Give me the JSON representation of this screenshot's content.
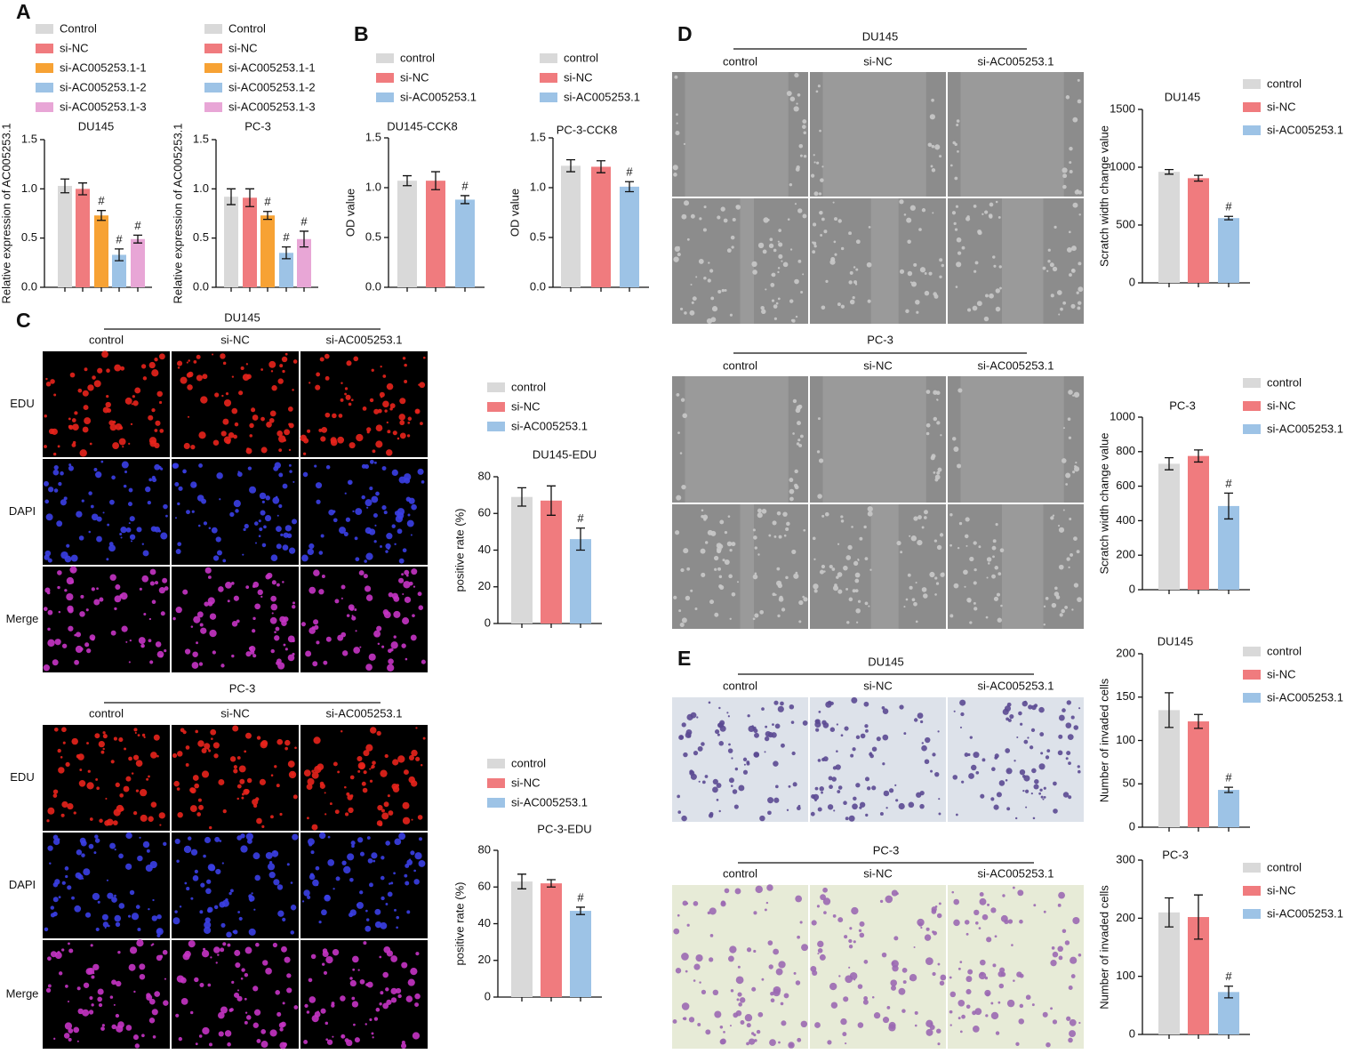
{
  "panel_labels": [
    "A",
    "B",
    "C",
    "D",
    "E"
  ],
  "image_panels": [
    {
      "group": "DU145",
      "columns": [
        "control",
        "si-NC",
        "si-AC005253.1"
      ],
      "rows": [
        "EDU",
        "DAPI",
        "Merge"
      ]
    },
    {
      "group": "PC-3",
      "columns": [
        "control",
        "si-NC",
        "si-AC005253.1"
      ],
      "rows": [
        "EDU",
        "DAPI",
        "Merge"
      ]
    },
    {
      "group": "DU145",
      "columns": [
        "control",
        "si-NC",
        "si-AC005253.1"
      ]
    },
    {
      "group": "PC-3",
      "columns": [
        "control",
        "si-NC",
        "si-AC005253.1"
      ]
    },
    {
      "group": "DU145",
      "columns": [
        "control",
        "si-NC",
        "si-AC005253.1"
      ]
    },
    {
      "group": "PC-3",
      "columns": [
        "control",
        "si-NC",
        "si-AC005253.1"
      ]
    }
  ],
  "chart_data": [
    {
      "type": "bar",
      "title": "DU145",
      "ylabel": "Relative expression of AC005253.1",
      "ylim": [
        0,
        1.5
      ],
      "yticks": [
        {
          "value": 0,
          "label": "0.0"
        },
        {
          "value": 0.5,
          "label": "0.5"
        },
        {
          "value": 1,
          "label": "1.0"
        },
        {
          "value": 1.5,
          "label": "1.5"
        }
      ],
      "series": [
        {
          "name": "Control",
          "color": "#d9d9d9",
          "values": [
            1.03
          ],
          "errors": [
            0.07
          ]
        },
        {
          "name": "si-NC",
          "color": "#f07b7e",
          "values": [
            1.0
          ],
          "errors": [
            0.06
          ]
        },
        {
          "name": "si-AC005253.1-1",
          "color": "#f7a234",
          "values": [
            0.73
          ],
          "errors": [
            0.05
          ],
          "annotation": "#"
        },
        {
          "name": "si-AC005253.1-2",
          "color": "#9dc3e6",
          "values": [
            0.33
          ],
          "errors": [
            0.06
          ],
          "annotation": "#"
        },
        {
          "name": "si-AC005253.1-3",
          "color": "#e8a6d6",
          "values": [
            0.49
          ],
          "errors": [
            0.04
          ],
          "annotation": "#"
        }
      ]
    },
    {
      "type": "bar",
      "title": "PC-3",
      "ylabel": "Relative expression of AC005253.1",
      "ylim": [
        0,
        1.5
      ],
      "yticks": [
        {
          "value": 0,
          "label": "0.0"
        },
        {
          "value": 0.5,
          "label": "0.5"
        },
        {
          "value": 1,
          "label": "1.0"
        },
        {
          "value": 1.5,
          "label": "1.5"
        }
      ],
      "series": [
        {
          "name": "Control",
          "color": "#d9d9d9",
          "values": [
            0.92
          ],
          "errors": [
            0.08
          ]
        },
        {
          "name": "si-NC",
          "color": "#f07b7e",
          "values": [
            0.91
          ],
          "errors": [
            0.09
          ]
        },
        {
          "name": "si-AC005253.1-1",
          "color": "#f7a234",
          "values": [
            0.73
          ],
          "errors": [
            0.04
          ],
          "annotation": "#"
        },
        {
          "name": "si-AC005253.1-2",
          "color": "#9dc3e6",
          "values": [
            0.35
          ],
          "errors": [
            0.06
          ],
          "annotation": "#"
        },
        {
          "name": "si-AC005253.1-3",
          "color": "#e8a6d6",
          "values": [
            0.49
          ],
          "errors": [
            0.08
          ],
          "annotation": "#"
        }
      ]
    },
    {
      "type": "bar",
      "title": "DU145-CCK8",
      "ylabel": "OD value",
      "ylim": [
        0,
        1.5
      ],
      "yticks": [
        {
          "value": 0,
          "label": "0.0"
        },
        {
          "value": 0.5,
          "label": "0.5"
        },
        {
          "value": 1,
          "label": "1.0"
        },
        {
          "value": 1.5,
          "label": "1.5"
        }
      ],
      "series": [
        {
          "name": "control",
          "color": "#d9d9d9",
          "values": [
            1.07
          ],
          "errors": [
            0.05
          ]
        },
        {
          "name": "si-NC",
          "color": "#f07b7e",
          "values": [
            1.07
          ],
          "errors": [
            0.09
          ]
        },
        {
          "name": "si-AC005253.1",
          "color": "#9dc3e6",
          "values": [
            0.88
          ],
          "errors": [
            0.04
          ],
          "annotation": "#"
        }
      ]
    },
    {
      "type": "bar",
      "title": "PC-3-CCK8",
      "ylabel": "OD value",
      "ylim": [
        0,
        1.5
      ],
      "yticks": [
        {
          "value": 0,
          "label": "0.0"
        },
        {
          "value": 0.5,
          "label": "0.5"
        },
        {
          "value": 1,
          "label": "1.0"
        },
        {
          "value": 1.5,
          "label": "1.5"
        }
      ],
      "series": [
        {
          "name": "control",
          "color": "#d9d9d9",
          "values": [
            1.22
          ],
          "errors": [
            0.06
          ]
        },
        {
          "name": "si-NC",
          "color": "#f07b7e",
          "values": [
            1.21
          ],
          "errors": [
            0.06
          ]
        },
        {
          "name": "si-AC005253.1",
          "color": "#9dc3e6",
          "values": [
            1.01
          ],
          "errors": [
            0.05
          ],
          "annotation": "#"
        }
      ]
    },
    {
      "type": "bar",
      "title": "DU145-EDU",
      "ylabel": "positive rate (%)",
      "ylim": [
        0,
        80
      ],
      "yticks": [
        0,
        20,
        40,
        60,
        80
      ],
      "series": [
        {
          "name": "control",
          "color": "#d9d9d9",
          "values": [
            69
          ],
          "errors": [
            5
          ]
        },
        {
          "name": "si-NC",
          "color": "#f07b7e",
          "values": [
            67
          ],
          "errors": [
            8
          ]
        },
        {
          "name": "si-AC005253.1",
          "color": "#9dc3e6",
          "values": [
            46
          ],
          "errors": [
            6
          ],
          "annotation": "#"
        }
      ]
    },
    {
      "type": "bar",
      "title": "PC-3-EDU",
      "ylabel": "positive rate (%)",
      "ylim": [
        0,
        80
      ],
      "yticks": [
        0,
        20,
        40,
        60,
        80
      ],
      "series": [
        {
          "name": "control",
          "color": "#d9d9d9",
          "values": [
            63
          ],
          "errors": [
            4
          ]
        },
        {
          "name": "si-NC",
          "color": "#f07b7e",
          "values": [
            62
          ],
          "errors": [
            2
          ]
        },
        {
          "name": "si-AC005253.1",
          "color": "#9dc3e6",
          "values": [
            47
          ],
          "errors": [
            2
          ],
          "annotation": "#"
        }
      ]
    },
    {
      "type": "bar",
      "title": "DU145",
      "ylabel": "Scratch width change value",
      "ylim": [
        0,
        1500
      ],
      "yticks": [
        0,
        500,
        1000,
        1500
      ],
      "series": [
        {
          "name": "control",
          "color": "#d9d9d9",
          "values": [
            960
          ],
          "errors": [
            20
          ]
        },
        {
          "name": "si-NC",
          "color": "#f07b7e",
          "values": [
            905
          ],
          "errors": [
            25
          ]
        },
        {
          "name": "si-AC005253.1",
          "color": "#9dc3e6",
          "values": [
            560
          ],
          "errors": [
            15
          ],
          "annotation": "#"
        }
      ]
    },
    {
      "type": "bar",
      "title": "PC-3",
      "ylabel": "Scratch width change value",
      "ylim": [
        0,
        1000
      ],
      "yticks": [
        0,
        200,
        400,
        600,
        800,
        1000
      ],
      "series": [
        {
          "name": "control",
          "color": "#d9d9d9",
          "values": [
            730
          ],
          "errors": [
            35
          ]
        },
        {
          "name": "si-NC",
          "color": "#f07b7e",
          "values": [
            775
          ],
          "errors": [
            35
          ]
        },
        {
          "name": "si-AC005253.1",
          "color": "#9dc3e6",
          "values": [
            485
          ],
          "errors": [
            75
          ],
          "annotation": "#"
        }
      ]
    },
    {
      "type": "bar",
      "title": "DU145",
      "ylabel": "Number of invaded cells",
      "ylim": [
        0,
        200
      ],
      "yticks": [
        0,
        50,
        100,
        150,
        200
      ],
      "series": [
        {
          "name": "control",
          "color": "#d9d9d9",
          "values": [
            135
          ],
          "errors": [
            20
          ]
        },
        {
          "name": "si-NC",
          "color": "#f07b7e",
          "values": [
            122
          ],
          "errors": [
            8
          ]
        },
        {
          "name": "si-AC005253.1",
          "color": "#9dc3e6",
          "values": [
            43
          ],
          "errors": [
            3
          ],
          "annotation": "#"
        }
      ]
    },
    {
      "type": "bar",
      "title": "PC-3",
      "ylabel": "Number of invaded cells",
      "ylim": [
        0,
        300
      ],
      "yticks": [
        0,
        100,
        200,
        300
      ],
      "series": [
        {
          "name": "control",
          "color": "#d9d9d9",
          "values": [
            210
          ],
          "errors": [
            25
          ]
        },
        {
          "name": "si-NC",
          "color": "#f07b7e",
          "values": [
            202
          ],
          "errors": [
            38
          ]
        },
        {
          "name": "si-AC005253.1",
          "color": "#9dc3e6",
          "values": [
            73
          ],
          "errors": [
            10
          ],
          "annotation": "#"
        }
      ]
    }
  ]
}
